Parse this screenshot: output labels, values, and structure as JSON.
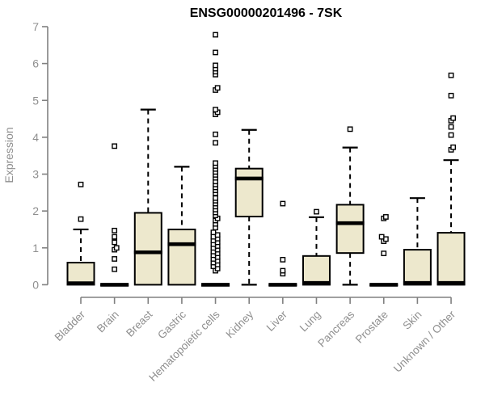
{
  "page": {
    "background": "#ffffff"
  },
  "chart_data": {
    "type": "boxplot",
    "title": "ENSG00000201496 - 7SK",
    "xlabel": "",
    "ylabel": "Expression",
    "ylim": [
      0,
      7
    ],
    "yticks": [
      0,
      1,
      2,
      3,
      4,
      5,
      6,
      7
    ],
    "grid": false,
    "legend": "none",
    "colors": {
      "box_fill": "#EDE8CD",
      "box_stroke": "#000000",
      "median": "#000000",
      "whisker": "#000000",
      "outlier_stroke": "#000000",
      "outlier_fill": "#ffffff",
      "axis_line": "#808080",
      "axis_text": "#8f8f8f",
      "title": "#000000",
      "background": "#ffffff"
    },
    "categories": [
      "Bladder",
      "Brain",
      "Breast",
      "Gastric",
      "Hematopoietic cells",
      "Kidney",
      "Liver",
      "Lung",
      "Pancreas",
      "Prostate",
      "Skin",
      "Unknown / Other"
    ],
    "series": [
      {
        "name": "Bladder",
        "low": 0,
        "q1": 0,
        "median": 0.04,
        "q3": 0.6,
        "high": 1.5,
        "outliers": [
          1.78,
          2.72
        ]
      },
      {
        "name": "Brain",
        "low": 0,
        "q1": 0,
        "median": 0,
        "q3": 0,
        "high": 0,
        "outliers": [
          0.42,
          0.7,
          0.95,
          1.0,
          1.15,
          1.3,
          1.47,
          3.76
        ]
      },
      {
        "name": "Breast",
        "low": 0,
        "q1": 0,
        "median": 0.88,
        "q3": 1.95,
        "high": 4.75,
        "outliers": []
      },
      {
        "name": "Gastric",
        "low": 0,
        "q1": 0,
        "median": 1.1,
        "q3": 1.5,
        "high": 3.2,
        "outliers": []
      },
      {
        "name": "Hematopoietic cells",
        "low": 0,
        "q1": 0,
        "median": 0,
        "q3": 0,
        "high": 0,
        "outliers": [
          0.38,
          0.44,
          0.5,
          0.55,
          0.6,
          0.65,
          0.7,
          0.75,
          0.8,
          0.85,
          0.9,
          0.95,
          1.0,
          1.05,
          1.1,
          1.15,
          1.2,
          1.25,
          1.3,
          1.35,
          1.42,
          1.55,
          1.65,
          1.74,
          1.8,
          1.88,
          1.96,
          2.04,
          2.12,
          2.2,
          2.28,
          2.35,
          2.48,
          2.56,
          2.64,
          2.72,
          2.8,
          2.9,
          2.98,
          3.06,
          3.14,
          3.22,
          3.3,
          3.85,
          4.08,
          4.62,
          4.68,
          4.75,
          5.28,
          5.34,
          5.7,
          5.78,
          5.86,
          5.95,
          6.3,
          6.78
        ]
      },
      {
        "name": "Kidney",
        "low": 0,
        "q1": 1.85,
        "median": 2.88,
        "q3": 3.15,
        "high": 4.2,
        "outliers": []
      },
      {
        "name": "Liver",
        "low": 0,
        "q1": 0,
        "median": 0,
        "q3": 0,
        "high": 0,
        "outliers": [
          0.3,
          0.38,
          0.68,
          2.2
        ]
      },
      {
        "name": "Lung",
        "low": 0,
        "q1": 0,
        "median": 0.05,
        "q3": 0.78,
        "high": 1.83,
        "outliers": [
          1.98
        ]
      },
      {
        "name": "Pancreas",
        "low": 0,
        "q1": 0.86,
        "median": 1.67,
        "q3": 2.17,
        "high": 3.72,
        "outliers": [
          4.22
        ]
      },
      {
        "name": "Prostate",
        "low": 0,
        "q1": 0,
        "median": 0,
        "q3": 0,
        "high": 0,
        "outliers": [
          0.85,
          1.18,
          1.24,
          1.3,
          1.8,
          1.84
        ]
      },
      {
        "name": "Skin",
        "low": 0,
        "q1": 0,
        "median": 0.05,
        "q3": 0.95,
        "high": 2.35,
        "outliers": []
      },
      {
        "name": "Unknown / Other",
        "low": 0,
        "q1": 0,
        "median": 0.05,
        "q3": 1.41,
        "high": 3.38,
        "outliers": [
          3.66,
          3.73,
          4.06,
          4.28,
          4.45,
          4.52,
          5.13,
          5.68
        ]
      }
    ]
  }
}
